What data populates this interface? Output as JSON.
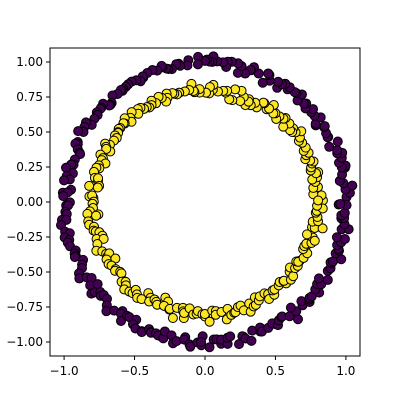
{
  "chart_data": {
    "type": "scatter",
    "title": "",
    "xlabel": "",
    "ylabel": "",
    "xlim": [
      -1.1,
      1.1
    ],
    "ylim": [
      -1.1,
      1.1
    ],
    "x_ticks": [
      -1.0,
      -0.5,
      0.0,
      0.5,
      1.0
    ],
    "y_ticks": [
      -1.0,
      -0.75,
      -0.5,
      -0.25,
      0.0,
      0.25,
      0.5,
      0.75,
      1.0
    ],
    "x_tick_labels": [
      "−1.0",
      "−0.5",
      "0.0",
      "0.5",
      "1.0"
    ],
    "y_tick_labels": [
      "−1.00",
      "−0.75",
      "−0.50",
      "−0.25",
      "0.00",
      "0.25",
      "0.50",
      "0.75",
      "1.00"
    ],
    "grid": false,
    "legend": "none",
    "series": [
      {
        "color": "#440154",
        "shape": "circle",
        "radius": 1.0,
        "noise": 0.02,
        "count": 250
      },
      {
        "color": "#fde725",
        "shape": "circle",
        "radius": 0.8,
        "noise": 0.02,
        "count": 250
      }
    ]
  }
}
